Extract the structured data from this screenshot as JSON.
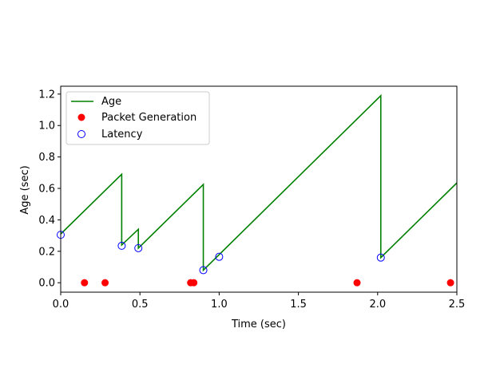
{
  "chart_data": {
    "type": "line",
    "xlabel": "Time (sec)",
    "ylabel": "Age (sec)",
    "xlim": [
      0.0,
      2.5
    ],
    "ylim": [
      -0.06,
      1.25
    ],
    "xticks": [
      "0.0",
      "0.5",
      "1.0",
      "1.5",
      "2.0",
      "2.5"
    ],
    "yticks": [
      "0.0",
      "0.2",
      "0.4",
      "0.6",
      "0.8",
      "1.0",
      "1.2"
    ],
    "grid": false,
    "legend_position": "top-left",
    "series": [
      {
        "name": "Age",
        "kind": "line",
        "color": "#008000",
        "x": [
          0.0,
          0.385,
          0.385,
          0.49,
          0.49,
          0.9,
          0.9,
          2.02,
          2.02,
          2.5
        ],
        "y": [
          0.31,
          0.69,
          0.24,
          0.34,
          0.22,
          0.625,
          0.08,
          1.19,
          0.16,
          0.635
        ]
      },
      {
        "name": "Packet Generation",
        "kind": "scatter-filled",
        "color": "#ff0000",
        "x": [
          0.15,
          0.28,
          0.82,
          0.84,
          1.87,
          2.46
        ],
        "y": [
          0.0,
          0.0,
          0.0,
          0.0,
          0.0,
          0.0
        ]
      },
      {
        "name": "Latency",
        "kind": "scatter-open",
        "color": "#0000ff",
        "x": [
          0.0,
          0.385,
          0.49,
          0.9,
          1.0,
          2.02
        ],
        "y": [
          0.305,
          0.235,
          0.22,
          0.08,
          0.165,
          0.16
        ]
      }
    ]
  }
}
